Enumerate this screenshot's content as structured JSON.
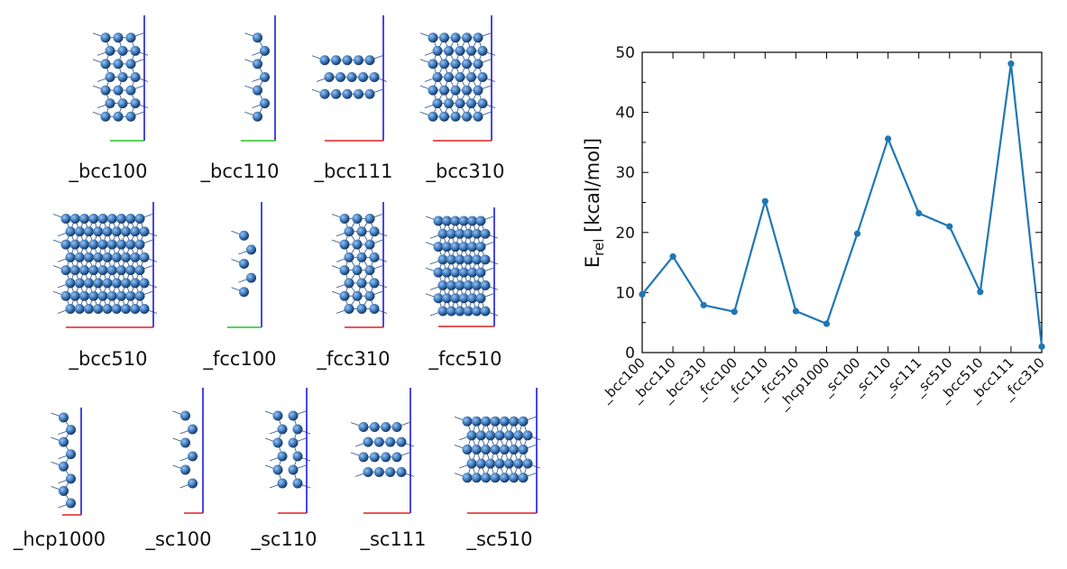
{
  "structures": [
    {
      "label": "_bcc100",
      "rows": 7,
      "cols": 3,
      "axis": "green"
    },
    {
      "label": "_bcc110",
      "rows": 7,
      "cols": 1,
      "axis": "green"
    },
    {
      "label": "_bcc111",
      "rows": 3,
      "cols": 5,
      "axis": "red"
    },
    {
      "label": "_bcc310",
      "rows": 7,
      "cols": 5,
      "axis": "red"
    },
    {
      "label": "_bcc510",
      "rows": 8,
      "cols": 9,
      "axis": "red"
    },
    {
      "label": "_fcc100",
      "rows": 5,
      "cols": 1,
      "axis": "green"
    },
    {
      "label": "_fcc310",
      "rows": 8,
      "cols": 3,
      "axis": "red"
    },
    {
      "label": "_fcc510",
      "rows": 8,
      "cols": 6,
      "axis": "red"
    },
    {
      "label": "_hcp1000",
      "rows": 8,
      "cols": 1,
      "axis": "red"
    },
    {
      "label": "_sc100",
      "rows": 6,
      "cols": 1,
      "axis": "red"
    },
    {
      "label": "_sc110",
      "rows": 6,
      "cols": 2,
      "axis": "red"
    },
    {
      "label": "_sc111",
      "rows": 4,
      "cols": 4,
      "axis": "red"
    },
    {
      "label": "_sc510",
      "rows": 5,
      "cols": 7,
      "axis": "red"
    }
  ],
  "chart_data": {
    "type": "line",
    "title": "",
    "xlabel": "",
    "ylabel": "E",
    "ylabel_sub": "rel",
    "ylabel_unit": " [kcal/mol]",
    "categories": [
      "_bcc100",
      "_bcc110",
      "_bcc310",
      "_fcc100",
      "_fcc110",
      "_fcc510",
      "_hcp1000",
      "_sc100",
      "_sc110",
      "_sc111",
      "_sc510",
      "_bcc510",
      "_bcc111",
      "_fcc310"
    ],
    "series": [
      {
        "values": [
          9.7,
          16.0,
          7.9,
          6.8,
          25.2,
          6.9,
          4.8,
          19.8,
          35.6,
          23.2,
          21.0,
          10.1,
          48.1,
          1.0
        ]
      }
    ],
    "ylim": [
      0,
      50
    ],
    "yticks": [
      0,
      10,
      20,
      30,
      40,
      50
    ],
    "grid": false,
    "color": "#1f77b4"
  }
}
